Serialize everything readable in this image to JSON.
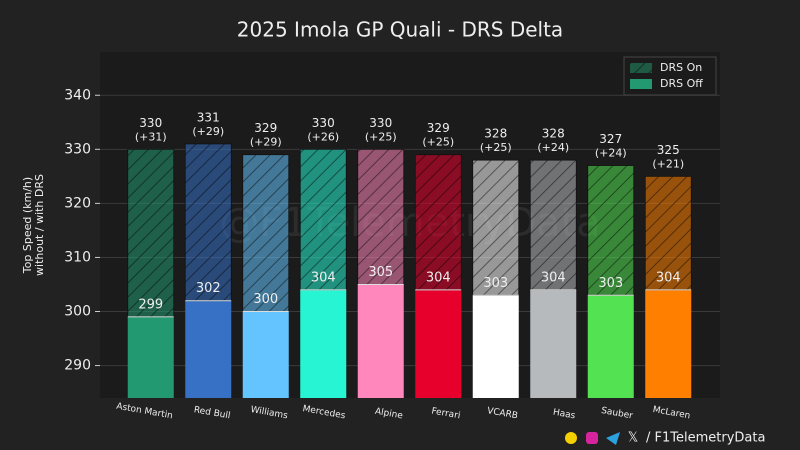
{
  "chart_data": {
    "type": "bar",
    "title": "2025 Imola GP Quali - DRS Delta",
    "y_label": "Top Speed (km/h)\nwithout / with DRS",
    "watermark": "@F1TelemetryData",
    "footer": "/ F1TelemetryData",
    "categories": [
      "Aston Martin",
      "Red Bull",
      "Williams",
      "Mercedes",
      "Alpine",
      "Ferrari",
      "VCARB",
      "Haas",
      "Sauber",
      "McLaren"
    ],
    "bar_colors": [
      "#229971",
      "#3671c6",
      "#64c4ff",
      "#27f4d2",
      "#ff87bc",
      "#e8002d",
      "#ffffff",
      "#b6babd",
      "#52e252",
      "#ff8000"
    ],
    "series": [
      {
        "name": "DRS Off",
        "color": "#229971",
        "values": [
          299,
          302,
          300,
          304,
          305,
          304,
          303,
          304,
          303,
          304
        ]
      },
      {
        "name": "DRS On",
        "color": "#1f5a45",
        "values": [
          31,
          29,
          29,
          26,
          25,
          25,
          25,
          24,
          24,
          21
        ],
        "value_labels": [
          "(+31)",
          "(+29)",
          "(+29)",
          "(+26)",
          "(+25)",
          "(+25)",
          "(+25)",
          "(+24)",
          "(+24)",
          "(+21)"
        ]
      }
    ],
    "total_labels": [
      "330",
      "331",
      "329",
      "330",
      "330",
      "329",
      "328",
      "328",
      "327",
      "325"
    ],
    "ylim": [
      284,
      348
    ],
    "yticks": [
      290,
      300,
      310,
      320,
      330,
      340
    ],
    "grid": true,
    "legend": "upper right"
  }
}
